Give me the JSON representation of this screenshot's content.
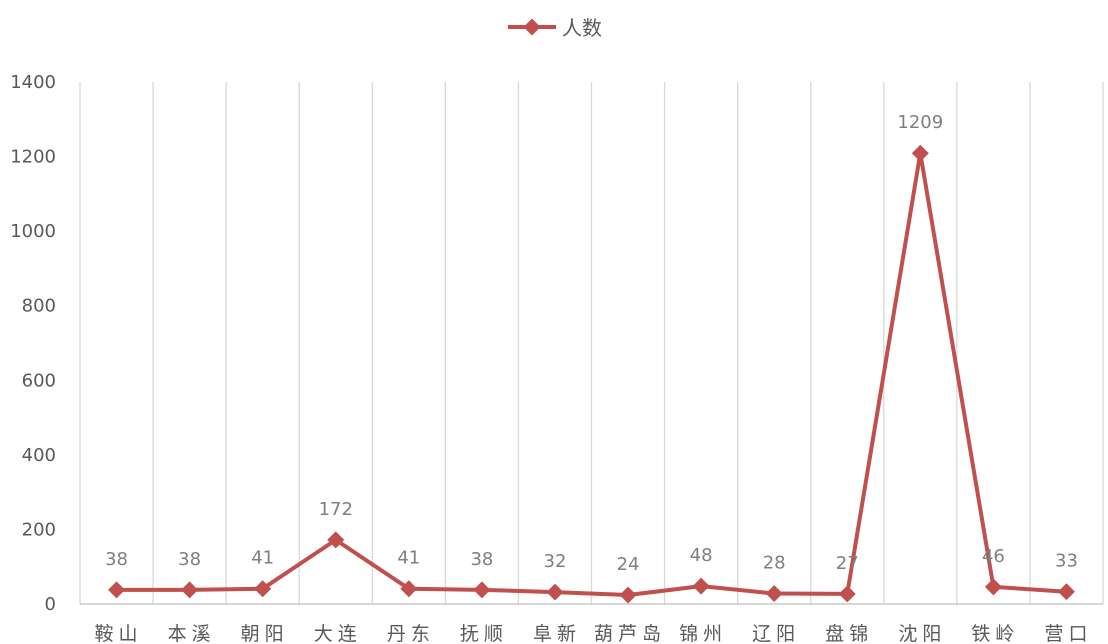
{
  "chart_data": {
    "type": "line",
    "categories": [
      "鞍山",
      "本溪",
      "朝阳",
      "大连",
      "丹东",
      "抚顺",
      "阜新",
      "葫芦岛",
      "锦州",
      "辽阳",
      "盘锦",
      "沈阳",
      "铁岭",
      "营口"
    ],
    "series": [
      {
        "name": "人数",
        "values": [
          38,
          38,
          41,
          172,
          41,
          38,
          32,
          24,
          48,
          28,
          27,
          1209,
          46,
          33
        ],
        "color": "#c0504d"
      }
    ],
    "ylim": [
      0,
      1400
    ],
    "yticks": [
      0,
      200,
      400,
      600,
      800,
      1000,
      1200,
      1400
    ],
    "grid": "vertical",
    "legend": "top-center",
    "xlabel": "",
    "ylabel": ""
  }
}
